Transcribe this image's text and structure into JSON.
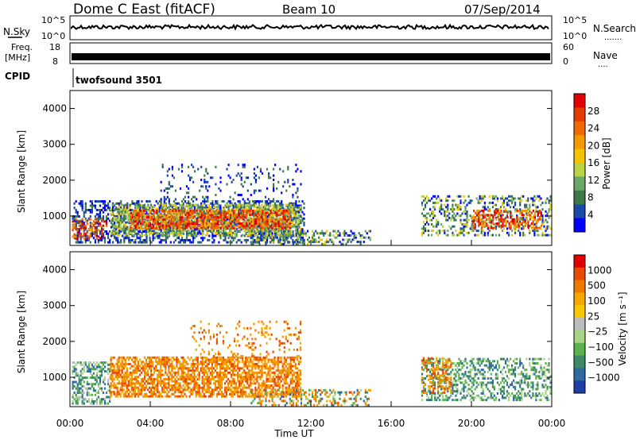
{
  "header": {
    "title": "Dome C East (fitACF)",
    "beam": "Beam 10",
    "date": "07/Sep/2014"
  },
  "strips": {
    "nsky_label": "N.Sky",
    "nsky_ticks": [
      "10^5",
      "10^0"
    ],
    "nsearch_label": "N.Search",
    "nsearch_ticks": [
      "10^5",
      "10^0"
    ],
    "freq_label_1": "Freq.",
    "freq_label_2": "[MHz]",
    "freq_ticks": [
      "18",
      "8"
    ],
    "nave_label": "Nave",
    "nave_ticks": [
      "60",
      "0"
    ],
    "cpid_label": "CPID",
    "cpid_value": "twofsound  3501"
  },
  "chart_data": [
    {
      "type": "heatmap",
      "name": "power",
      "ylabel": "Slant Range [km]",
      "yticks": [
        "4000",
        "3000",
        "2000",
        "1000"
      ],
      "yrange_km": [
        180,
        4500
      ],
      "xrange_hours": [
        0,
        24
      ],
      "colorbar_label": "Power [dB]",
      "colorbar_ticks": [
        "28",
        "24",
        "20",
        "16",
        "12",
        "8",
        "4"
      ],
      "colorbar_colors": [
        "#0000ff",
        "#1b4aa8",
        "#3e7a48",
        "#6aa86a",
        "#b9d440",
        "#f4c400",
        "#f49a00",
        "#ee6a00",
        "#e43b00",
        "#e00000"
      ]
    },
    {
      "type": "heatmap",
      "name": "velocity",
      "ylabel": "Slant Range [km]",
      "yticks": [
        "4000",
        "3000",
        "2000",
        "1000"
      ],
      "yrange_km": [
        180,
        4500
      ],
      "xrange_hours": [
        0,
        24
      ],
      "colorbar_label": "Velocity [m s⁻¹]",
      "colorbar_ticks": [
        "1000",
        "500",
        "100",
        "25",
        "−25",
        "−100",
        "−500",
        "−1000"
      ],
      "colorbar_colors": [
        "#1c3fa8",
        "#2f6aa0",
        "#3e8a66",
        "#5cb34e",
        "#a8d486",
        "#bdbdbd",
        "#f7c800",
        "#f4a800",
        "#f07a00",
        "#e84a00",
        "#e00000"
      ],
      "xticks": [
        "00:00",
        "04:00",
        "08:00",
        "12:00",
        "16:00",
        "20:00",
        "00:00"
      ],
      "xlabel": "Time UT"
    }
  ]
}
